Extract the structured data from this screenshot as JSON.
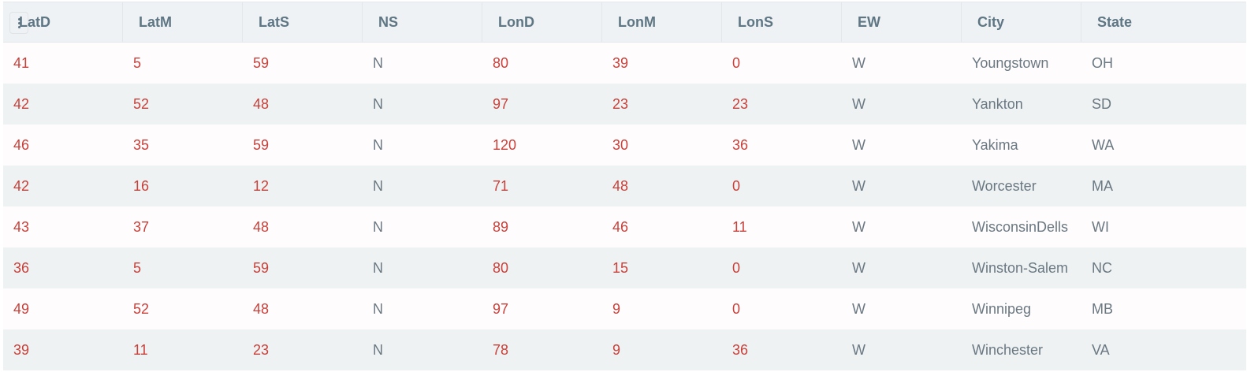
{
  "columns": [
    "LatD",
    "LatM",
    "LatS",
    "NS",
    "LonD",
    "LonM",
    "LonS",
    "EW",
    "City",
    "State"
  ],
  "numeric_columns": [
    true,
    true,
    true,
    false,
    true,
    true,
    true,
    false,
    false,
    false
  ],
  "rows": [
    [
      "41",
      "5",
      "59",
      "N",
      "80",
      "39",
      "0",
      "W",
      "Youngstown",
      "OH"
    ],
    [
      "42",
      "52",
      "48",
      "N",
      "97",
      "23",
      "23",
      "W",
      "Yankton",
      "SD"
    ],
    [
      "46",
      "35",
      "59",
      "N",
      "120",
      "30",
      "36",
      "W",
      "Yakima",
      "WA"
    ],
    [
      "42",
      "16",
      "12",
      "N",
      "71",
      "48",
      "0",
      "W",
      "Worcester",
      "MA"
    ],
    [
      "43",
      "37",
      "48",
      "N",
      "89",
      "46",
      "11",
      "W",
      "WisconsinDells",
      "WI"
    ],
    [
      "36",
      "5",
      "59",
      "N",
      "80",
      "15",
      "0",
      "W",
      "Winston-Salem",
      "NC"
    ],
    [
      "49",
      "52",
      "48",
      "N",
      "97",
      "9",
      "0",
      "W",
      "Winnipeg",
      "MB"
    ],
    [
      "39",
      "11",
      "23",
      "N",
      "78",
      "9",
      "36",
      "W",
      "Winchester",
      "VA"
    ]
  ],
  "colors": {
    "numeric_text": "#c8403a",
    "text": "#6a7882",
    "header_text": "#5f7684",
    "header_bg": "#eef2f4",
    "stripe": "#eef2f3"
  },
  "icons": {
    "column_menu": "vertical-dots-icon"
  }
}
